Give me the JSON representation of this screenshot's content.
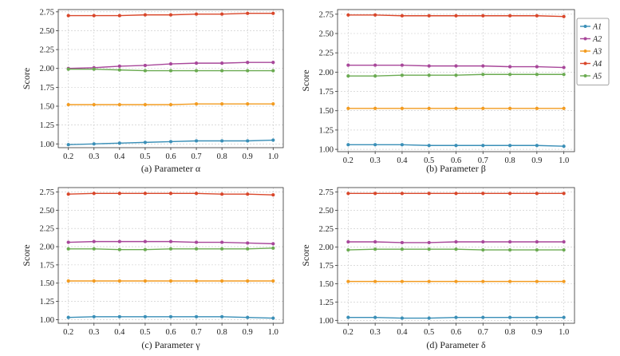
{
  "legend": {
    "entries": [
      "A1",
      "A2",
      "A3",
      "A4",
      "A5"
    ],
    "placement": "right, between top panels"
  },
  "colors": {
    "A1": "#3a8fb7",
    "A2": "#a8479a",
    "A3": "#f39c21",
    "A4": "#d9472b",
    "A5": "#6bab52",
    "grid": "#c8c8c8",
    "axis": "#333333"
  },
  "chart_data": [
    {
      "type": "line",
      "title": "(a) Parameter α",
      "xlabel": "",
      "ylabel": "Score",
      "x": [
        0.2,
        0.3,
        0.4,
        0.5,
        0.6,
        0.7,
        0.8,
        0.9,
        1.0
      ],
      "xticks": [
        "0.2",
        "0.3",
        "0.4",
        "0.5",
        "0.6",
        "0.7",
        "0.8",
        "0.9",
        "1.0"
      ],
      "yticks": [
        "1.00",
        "1.25",
        "1.50",
        "1.75",
        "2.00",
        "2.25",
        "2.50",
        "2.75"
      ],
      "ylim": [
        0.95,
        2.78
      ],
      "grid": true,
      "series": [
        {
          "name": "A1",
          "values": [
            0.99,
            1.0,
            1.01,
            1.02,
            1.03,
            1.04,
            1.04,
            1.04,
            1.05
          ]
        },
        {
          "name": "A2",
          "values": [
            2.0,
            2.01,
            2.03,
            2.04,
            2.06,
            2.07,
            2.07,
            2.08,
            2.08
          ]
        },
        {
          "name": "A3",
          "values": [
            1.52,
            1.52,
            1.52,
            1.52,
            1.52,
            1.53,
            1.53,
            1.53,
            1.53
          ]
        },
        {
          "name": "A4",
          "values": [
            2.7,
            2.7,
            2.7,
            2.71,
            2.71,
            2.72,
            2.72,
            2.73,
            2.73
          ]
        },
        {
          "name": "A5",
          "values": [
            1.99,
            1.99,
            1.98,
            1.97,
            1.97,
            1.97,
            1.97,
            1.97,
            1.97
          ]
        }
      ]
    },
    {
      "type": "line",
      "title": "(b) Parameter β",
      "xlabel": "",
      "ylabel": "Score",
      "x": [
        0.2,
        0.3,
        0.4,
        0.5,
        0.6,
        0.7,
        0.8,
        0.9,
        1.0
      ],
      "xticks": [
        "0.2",
        "0.3",
        "0.4",
        "0.5",
        "0.6",
        "0.7",
        "0.8",
        "0.9",
        "1.0"
      ],
      "yticks": [
        "1.00",
        "1.25",
        "1.50",
        "1.75",
        "2.00",
        "2.25",
        "2.50",
        "2.75"
      ],
      "ylim": [
        0.97,
        2.81
      ],
      "grid": true,
      "series": [
        {
          "name": "A1",
          "values": [
            1.06,
            1.06,
            1.06,
            1.05,
            1.05,
            1.05,
            1.05,
            1.05,
            1.04
          ]
        },
        {
          "name": "A2",
          "values": [
            2.09,
            2.09,
            2.09,
            2.08,
            2.08,
            2.08,
            2.07,
            2.07,
            2.06
          ]
        },
        {
          "name": "A3",
          "values": [
            1.53,
            1.53,
            1.53,
            1.53,
            1.53,
            1.53,
            1.53,
            1.53,
            1.53
          ]
        },
        {
          "name": "A4",
          "values": [
            2.74,
            2.74,
            2.73,
            2.73,
            2.73,
            2.73,
            2.73,
            2.73,
            2.72
          ]
        },
        {
          "name": "A5",
          "values": [
            1.95,
            1.95,
            1.96,
            1.96,
            1.96,
            1.97,
            1.97,
            1.97,
            1.97
          ]
        }
      ]
    },
    {
      "type": "line",
      "title": "(c) Parameter γ",
      "xlabel": "",
      "ylabel": "Score",
      "x": [
        0.2,
        0.3,
        0.4,
        0.5,
        0.6,
        0.7,
        0.8,
        0.9,
        1.0
      ],
      "xticks": [
        "0.2",
        "0.3",
        "0.4",
        "0.5",
        "0.6",
        "0.7",
        "0.8",
        "0.9",
        "1.0"
      ],
      "yticks": [
        "1.00",
        "1.25",
        "1.50",
        "1.75",
        "2.00",
        "2.25",
        "2.50",
        "2.75"
      ],
      "ylim": [
        0.95,
        2.81
      ],
      "grid": true,
      "series": [
        {
          "name": "A1",
          "values": [
            1.03,
            1.04,
            1.04,
            1.04,
            1.04,
            1.04,
            1.04,
            1.03,
            1.02
          ]
        },
        {
          "name": "A2",
          "values": [
            2.06,
            2.07,
            2.07,
            2.07,
            2.07,
            2.06,
            2.06,
            2.05,
            2.04
          ]
        },
        {
          "name": "A3",
          "values": [
            1.53,
            1.53,
            1.53,
            1.53,
            1.53,
            1.53,
            1.53,
            1.53,
            1.53
          ]
        },
        {
          "name": "A4",
          "values": [
            2.72,
            2.73,
            2.73,
            2.73,
            2.73,
            2.73,
            2.72,
            2.72,
            2.71
          ]
        },
        {
          "name": "A5",
          "values": [
            1.97,
            1.97,
            1.96,
            1.96,
            1.97,
            1.97,
            1.97,
            1.97,
            1.98
          ]
        }
      ]
    },
    {
      "type": "line",
      "title": "(d) Parameter δ",
      "xlabel": "",
      "ylabel": "Score",
      "x": [
        0.2,
        0.3,
        0.4,
        0.5,
        0.6,
        0.7,
        0.8,
        0.9,
        1.0
      ],
      "xticks": [
        "0.2",
        "0.3",
        "0.4",
        "0.5",
        "0.6",
        "0.7",
        "0.8",
        "0.9",
        "1.0"
      ],
      "yticks": [
        "1.00",
        "1.25",
        "1.50",
        "1.75",
        "2.00",
        "2.25",
        "2.50",
        "2.75"
      ],
      "ylim": [
        0.96,
        2.81
      ],
      "grid": true,
      "series": [
        {
          "name": "A1",
          "values": [
            1.04,
            1.04,
            1.03,
            1.03,
            1.04,
            1.04,
            1.04,
            1.04,
            1.04
          ]
        },
        {
          "name": "A2",
          "values": [
            2.07,
            2.07,
            2.06,
            2.06,
            2.07,
            2.07,
            2.07,
            2.07,
            2.07
          ]
        },
        {
          "name": "A3",
          "values": [
            1.53,
            1.53,
            1.53,
            1.53,
            1.53,
            1.53,
            1.53,
            1.53,
            1.53
          ]
        },
        {
          "name": "A4",
          "values": [
            2.73,
            2.73,
            2.73,
            2.73,
            2.73,
            2.73,
            2.73,
            2.73,
            2.73
          ]
        },
        {
          "name": "A5",
          "values": [
            1.96,
            1.97,
            1.97,
            1.97,
            1.97,
            1.96,
            1.96,
            1.96,
            1.96
          ]
        }
      ]
    }
  ]
}
